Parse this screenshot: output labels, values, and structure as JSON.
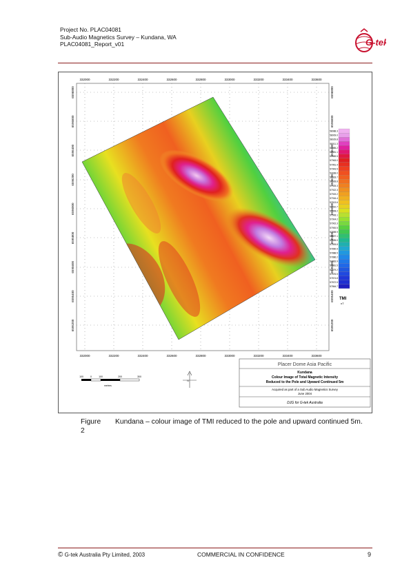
{
  "header": {
    "project": "Project No.  PLAC04081",
    "survey": "Sub-Audio Magnetics Survey – Kundana, WA",
    "report": "PLAC04081_Report_v01",
    "logo_text": "G-tek"
  },
  "map": {
    "x_ticks": [
      "332000",
      "332200",
      "332400",
      "332600",
      "332800",
      "333000",
      "333200",
      "333400",
      "333600"
    ],
    "y_ticks": [
      "6596800",
      "6596600",
      "6596400",
      "6596200",
      "6596000",
      "6595800",
      "6595600",
      "6595400",
      "6595200"
    ],
    "legend_values": [
      "58088.3",
      "58009.0",
      "58029.8",
      "58011.3",
      "57985.2",
      "57981.1",
      "57969.5",
      "57963.0",
      "57951.4",
      "57943.5",
      "57938.0",
      "57933.7",
      "57928.8",
      "57925.3",
      "57922.3",
      "57919.2",
      "57916.4",
      "57913.6",
      "57910.7",
      "57908.2",
      "57906.1",
      "57904.2",
      "57902.3",
      "57900.5",
      "57898.9",
      "57897.1",
      "57895.0",
      "57893.8",
      "57890.9",
      "57888.5",
      "57886.2",
      "57883.9",
      "57881.5",
      "57879.2",
      "57876.5",
      "57874.8",
      "57872.5",
      "57864.7"
    ],
    "legend_title": "TMI",
    "legend_unit": "nT",
    "scale_labels": [
      "100",
      "0",
      "100",
      "200",
      "300"
    ],
    "scale_unit": "metres",
    "title_company": "Placer Dome Asia Pacific",
    "title_project": "Kundana",
    "title_line1": "Colour Image of Total Magnetic Intensity",
    "title_line2": "Reduced to the Pole and Upward Continued 5m",
    "acq_line1": "Acquired as part of a Sub Audio Magnetics Survey",
    "acq_line2": "June 2004",
    "credit": "DJG for G-tek Australia"
  },
  "caption": {
    "number": "Figure 2",
    "text": "Kundana – colour image of TMI reduced to the pole and upward continued 5m."
  },
  "footer": {
    "copyright": "G-tek Australia Pty Limited, 2003",
    "confidential": "COMMERCIAL IN CONFIDENCE",
    "page": "9"
  },
  "colors": {
    "rule": "#8a1a1a",
    "logo": "#c8102e"
  }
}
